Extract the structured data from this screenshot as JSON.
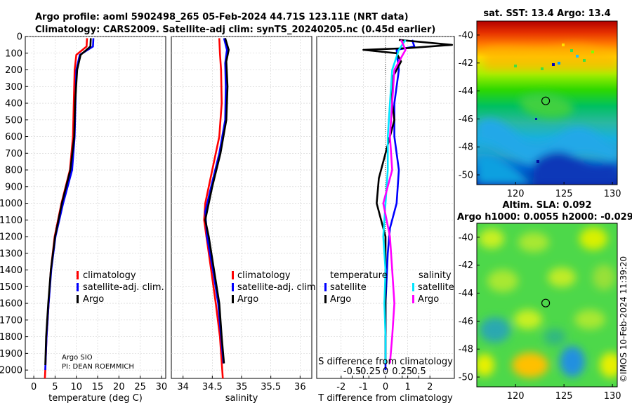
{
  "header": {
    "line1": "Argo profile: aoml 5902498_265 05-Feb-2024 44.71S 123.11E (NRT data)",
    "line2": "Climatology: CARS2009. Satellite-adj clim: synTS_20240205.nc (0.45d earlier)"
  },
  "colors": {
    "argo": "#000000",
    "climatology": "#ff0000",
    "satellite_adj": "#0000ff",
    "sat_salinity": "#00e5ff",
    "argo_salinity": "#ff00ff"
  },
  "chart_data": [
    {
      "id": "temperature",
      "type": "line",
      "xlabel": "temperature (deg C)",
      "ylabel": "",
      "xlim": [
        -2,
        31
      ],
      "ylim": [
        2050,
        0
      ],
      "xticks": [
        0,
        5,
        10,
        15,
        20,
        25,
        30
      ],
      "xtick_labels": [
        "0",
        "5",
        "10",
        "15",
        "20",
        "25",
        "30"
      ],
      "yticks": [
        0,
        100,
        200,
        300,
        400,
        500,
        600,
        700,
        800,
        900,
        1000,
        1100,
        1200,
        1300,
        1400,
        1500,
        1600,
        1700,
        1800,
        1900,
        2000
      ],
      "legend": [
        "climatology",
        "satellite-adj. clim.",
        "Argo"
      ],
      "note": [
        "Argo SIO",
        "PI: DEAN ROEMMICH"
      ],
      "series": [
        {
          "name": "climatology",
          "color": "#ff0000",
          "points": [
            [
              12.5,
              10
            ],
            [
              12.4,
              60
            ],
            [
              10.0,
              110
            ],
            [
              9.6,
              200
            ],
            [
              9.4,
              400
            ],
            [
              9.2,
              600
            ],
            [
              8.5,
              800
            ],
            [
              6.5,
              1000
            ],
            [
              4.9,
              1200
            ],
            [
              4.0,
              1400
            ],
            [
              3.5,
              1600
            ],
            [
              3.0,
              1800
            ],
            [
              2.7,
              2000
            ],
            [
              2.6,
              2050
            ]
          ]
        },
        {
          "name": "satellite-adj. clim.",
          "color": "#0000ff",
          "points": [
            [
              14.0,
              10
            ],
            [
              13.9,
              60
            ],
            [
              10.8,
              110
            ],
            [
              10.0,
              200
            ],
            [
              9.8,
              400
            ],
            [
              9.6,
              600
            ],
            [
              9.0,
              800
            ],
            [
              6.9,
              1000
            ],
            [
              5.1,
              1200
            ],
            [
              4.1,
              1400
            ],
            [
              3.5,
              1600
            ],
            [
              3.0,
              1800
            ],
            [
              2.7,
              2000
            ]
          ]
        },
        {
          "name": "Argo",
          "color": "#000000",
          "points": [
            [
              13.4,
              10
            ],
            [
              13.3,
              60
            ],
            [
              11.0,
              110
            ],
            [
              10.2,
              200
            ],
            [
              9.7,
              400
            ],
            [
              9.5,
              600
            ],
            [
              8.6,
              800
            ],
            [
              6.6,
              1000
            ],
            [
              5.0,
              1200
            ],
            [
              4.0,
              1400
            ],
            [
              3.4,
              1600
            ],
            [
              2.9,
              1800
            ],
            [
              2.7,
              1970
            ]
          ]
        }
      ]
    },
    {
      "id": "salinity",
      "type": "line",
      "xlabel": "salinity",
      "ylabel": "",
      "xlim": [
        33.8,
        36.2
      ],
      "ylim": [
        2050,
        0
      ],
      "xticks": [
        34,
        34.5,
        35,
        35.5,
        36
      ],
      "xtick_labels": [
        "34",
        "34.5",
        "35",
        "35.5",
        "36"
      ],
      "legend": [
        "climatology",
        "satellite-adj. clim.",
        "Argo"
      ],
      "series": [
        {
          "name": "climatology",
          "color": "#ff0000",
          "points": [
            [
              34.62,
              10
            ],
            [
              34.63,
              100
            ],
            [
              34.65,
              200
            ],
            [
              34.66,
              400
            ],
            [
              34.62,
              600
            ],
            [
              34.5,
              800
            ],
            [
              34.38,
              1000
            ],
            [
              34.36,
              1100
            ],
            [
              34.4,
              1200
            ],
            [
              34.48,
              1400
            ],
            [
              34.56,
              1600
            ],
            [
              34.63,
              1800
            ],
            [
              34.67,
              2000
            ],
            [
              34.68,
              2050
            ]
          ]
        },
        {
          "name": "satellite-adj. clim.",
          "color": "#0000ff",
          "points": [
            [
              34.7,
              10
            ],
            [
              34.75,
              80
            ],
            [
              34.72,
              160
            ],
            [
              34.73,
              300
            ],
            [
              34.72,
              500
            ],
            [
              34.62,
              700
            ],
            [
              34.48,
              900
            ],
            [
              34.38,
              1050
            ],
            [
              34.41,
              1200
            ],
            [
              34.51,
              1400
            ],
            [
              34.6,
              1600
            ],
            [
              34.65,
              1800
            ],
            [
              34.69,
              1960
            ]
          ]
        },
        {
          "name": "Argo",
          "color": "#000000",
          "points": [
            [
              34.72,
              10
            ],
            [
              34.78,
              80
            ],
            [
              34.74,
              150
            ],
            [
              34.76,
              300
            ],
            [
              34.74,
              500
            ],
            [
              34.64,
              700
            ],
            [
              34.5,
              900
            ],
            [
              34.38,
              1100
            ],
            [
              34.44,
              1200
            ],
            [
              34.53,
              1400
            ],
            [
              34.62,
              1600
            ],
            [
              34.66,
              1800
            ],
            [
              34.7,
              1960
            ]
          ]
        }
      ]
    },
    {
      "id": "difference",
      "type": "line",
      "xlabel": "T difference from climatology",
      "ylabel": "",
      "top_label": "S difference from climatology",
      "xlim": [
        -3.1,
        3.1
      ],
      "ylim": [
        2050,
        0
      ],
      "xticks": [
        -2,
        -1,
        0,
        1,
        2
      ],
      "xtick_labels": [
        "-2",
        "-1",
        "0",
        "1",
        "2"
      ],
      "sticks": [
        -1.5,
        -0.75,
        0,
        0.75,
        1.5
      ],
      "stick_labels": [
        "-0.5",
        "-0.25",
        "0",
        "0.25",
        "0.5"
      ],
      "legend_temperature": {
        "title": "temperature",
        "items": [
          "satellite",
          "Argo"
        ]
      },
      "legend_salinity": {
        "title": "salinity",
        "items": [
          "satellite",
          "Argo"
        ]
      },
      "series": [
        {
          "name": "T satellite",
          "color": "#0000ff",
          "points": [
            [
              1.2,
              20
            ],
            [
              1.3,
              60
            ],
            [
              0.5,
              80
            ],
            [
              0.6,
              200
            ],
            [
              0.4,
              400
            ],
            [
              0.4,
              600
            ],
            [
              0.6,
              800
            ],
            [
              0.5,
              1000
            ],
            [
              0.2,
              1150
            ],
            [
              0.1,
              1300
            ],
            [
              0.0,
              1600
            ],
            [
              0.0,
              1800
            ],
            [
              0.0,
              2000
            ]
          ]
        },
        {
          "name": "T Argo",
          "color": "#000000",
          "points": [
            [
              0.6,
              20
            ],
            [
              3.0,
              50
            ],
            [
              1.0,
              70
            ],
            [
              -1.0,
              80
            ],
            [
              0.5,
              100
            ],
            [
              0.7,
              150
            ],
            [
              0.3,
              250
            ],
            [
              0.3,
              400
            ],
            [
              0.4,
              500
            ],
            [
              0.0,
              700
            ],
            [
              -0.3,
              850
            ],
            [
              -0.4,
              1000
            ],
            [
              -0.2,
              1100
            ],
            [
              0.0,
              1200
            ],
            [
              0.0,
              1500
            ],
            [
              0.0,
              1800
            ],
            [
              0.0,
              1960
            ]
          ]
        },
        {
          "name": "S satellite",
          "color": "#00e5ff",
          "points": [
            [
              0.9,
              20
            ],
            [
              0.6,
              80
            ],
            [
              0.3,
              200
            ],
            [
              0.2,
              400
            ],
            [
              0.1,
              600
            ],
            [
              0.1,
              800
            ],
            [
              0.0,
              1000
            ],
            [
              -0.1,
              1200
            ],
            [
              0.0,
              1400
            ],
            [
              -0.05,
              1600
            ],
            [
              0.0,
              1800
            ],
            [
              0.0,
              1960
            ]
          ]
        },
        {
          "name": "S Argo",
          "color": "#ff00ff",
          "points": [
            [
              0.7,
              20
            ],
            [
              0.9,
              80
            ],
            [
              0.4,
              200
            ],
            [
              0.3,
              400
            ],
            [
              0.2,
              600
            ],
            [
              0.3,
              800
            ],
            [
              -0.1,
              1000
            ],
            [
              0.2,
              1200
            ],
            [
              0.3,
              1400
            ],
            [
              0.4,
              1600
            ],
            [
              0.3,
              1800
            ],
            [
              0.2,
              1960
            ]
          ]
        }
      ]
    },
    {
      "id": "sst_map",
      "type": "heatmap",
      "title": "sat. SST: 13.4 Argo: 13.4",
      "xlim": [
        116,
        130.5
      ],
      "ylim": [
        -50.7,
        -39
      ],
      "xticks": [
        120,
        125,
        130
      ],
      "xtick_labels": [
        "120",
        "125",
        "130"
      ],
      "yticks": [
        -40,
        -42,
        -44,
        -46,
        -48,
        -50
      ],
      "ytick_labels": [
        "-40",
        "-42",
        "-44",
        "-46",
        "-48",
        "-50"
      ],
      "argo_position": [
        123.11,
        -44.71
      ]
    },
    {
      "id": "sla_map",
      "type": "heatmap",
      "title_lines": [
        "Altim. SLA: 0.092",
        "Argo h1000: 0.0055 h2000: -0.029"
      ],
      "xlim": [
        116,
        130.5
      ],
      "ylim": [
        -50.7,
        -39
      ],
      "xticks": [
        120,
        125,
        130
      ],
      "xtick_labels": [
        "120",
        "125",
        "130"
      ],
      "yticks": [
        -40,
        -42,
        -44,
        -46,
        -48,
        -50
      ],
      "ytick_labels": [
        "-40",
        "-42",
        "-44",
        "-46",
        "-48",
        "-50"
      ],
      "argo_position": [
        123.11,
        -44.71
      ]
    }
  ],
  "footer": {
    "stamp": "©IMOS 10-Feb-2024 11:39:20"
  }
}
